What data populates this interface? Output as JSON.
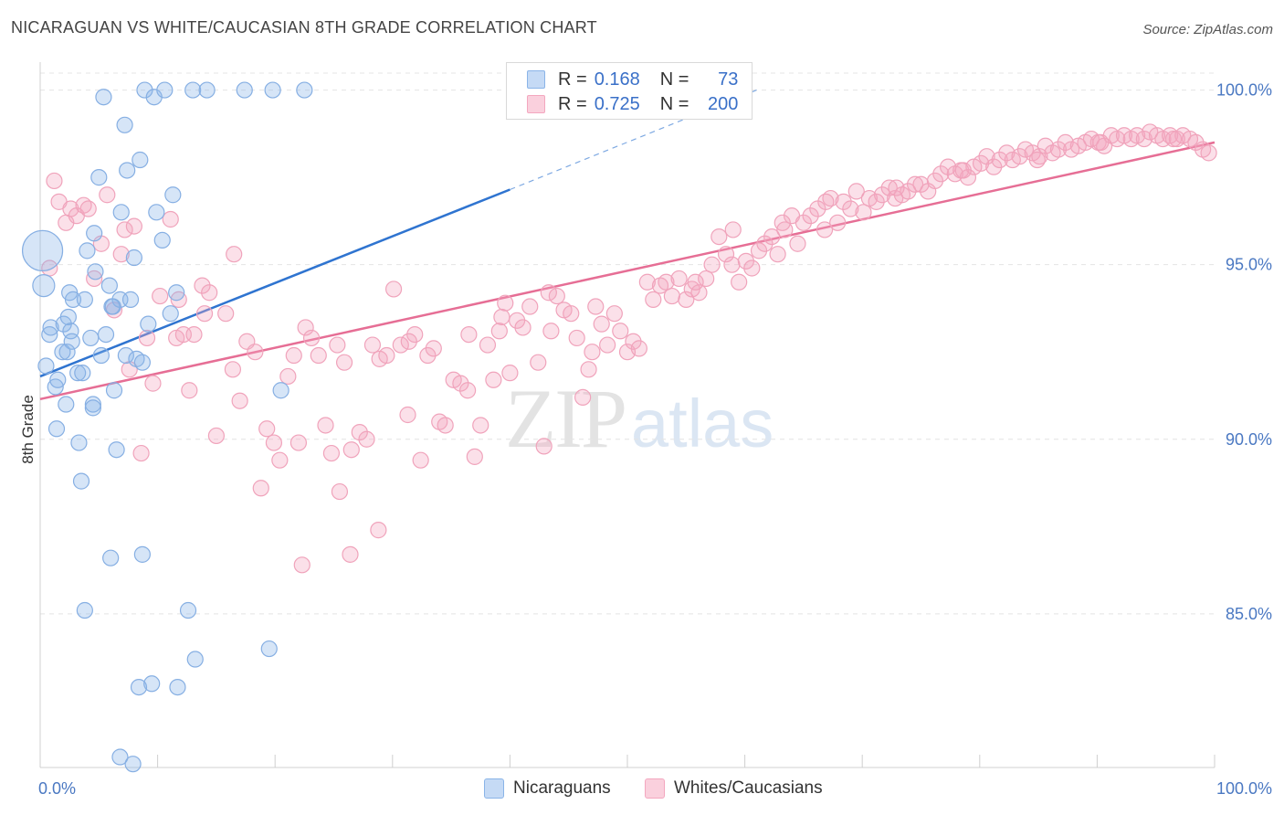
{
  "title": "NICARAGUAN VS WHITE/CAUCASIAN 8TH GRADE CORRELATION CHART",
  "source": "Source: ZipAtlas.com",
  "watermark": {
    "zip": "ZIP",
    "atlas": "atlas"
  },
  "colors": {
    "blue": "#8ab4e8",
    "blue_line": "#2f74d0",
    "pink": "#f3a7bf",
    "pink_line": "#e66e95",
    "tick": "#4a78c2"
  },
  "legend": {
    "rows": [
      {
        "r_label": "R =",
        "r_value": "0.168",
        "n_label": "N =",
        "n_value": "73"
      },
      {
        "r_label": "R =",
        "r_value": "0.725",
        "n_label": "N =",
        "n_value": "200"
      }
    ],
    "bottom": [
      "Nicaraguans",
      "Whites/Caucasians"
    ]
  },
  "chart_data": {
    "type": "scatter",
    "title": "NICARAGUAN VS WHITE/CAUCASIAN 8TH GRADE CORRELATION CHART",
    "xlabel": "",
    "ylabel": "8th Grade",
    "xlim": [
      0,
      100
    ],
    "ylim": [
      80.6,
      100.8
    ],
    "x_tick_labels": [
      "0.0%",
      "100.0%"
    ],
    "y_ticks": [
      85,
      90,
      95,
      100
    ],
    "y_tick_labels": [
      "85.0%",
      "90.0%",
      "95.0%",
      "100.0%"
    ],
    "grid": true,
    "legend_position": "top-center",
    "series": [
      {
        "name": "Nicaraguans",
        "r": 0.168,
        "n": 73,
        "trend": {
          "x0": 0,
          "y0": 91.8,
          "x1": 40,
          "y1": 97.15,
          "dash_to_x": 61,
          "dash_to_y": 100.0
        },
        "points": [
          [
            0.2,
            95.4
          ],
          [
            0.3,
            94.4
          ],
          [
            0.5,
            92.1
          ],
          [
            0.8,
            93.0
          ],
          [
            0.9,
            93.2
          ],
          [
            1.3,
            91.5
          ],
          [
            1.5,
            91.7
          ],
          [
            1.4,
            90.3
          ],
          [
            1.9,
            92.5
          ],
          [
            2.0,
            93.3
          ],
          [
            2.2,
            91.0
          ],
          [
            2.4,
            93.5
          ],
          [
            2.5,
            94.2
          ],
          [
            2.6,
            93.1
          ],
          [
            2.7,
            92.8
          ],
          [
            2.8,
            94.0
          ],
          [
            3.2,
            91.9
          ],
          [
            3.3,
            89.9
          ],
          [
            3.5,
            88.8
          ],
          [
            3.6,
            91.9
          ],
          [
            3.8,
            94.0
          ],
          [
            4.0,
            95.4
          ],
          [
            4.3,
            92.9
          ],
          [
            4.5,
            91.0
          ],
          [
            4.6,
            95.9
          ],
          [
            4.7,
            94.8
          ],
          [
            5.0,
            97.5
          ],
          [
            5.2,
            92.4
          ],
          [
            5.4,
            99.8
          ],
          [
            5.6,
            93.0
          ],
          [
            5.9,
            94.4
          ],
          [
            6.1,
            93.8
          ],
          [
            6.3,
            91.4
          ],
          [
            6.5,
            89.7
          ],
          [
            6.8,
            94.0
          ],
          [
            6.9,
            96.5
          ],
          [
            7.2,
            99.0
          ],
          [
            7.3,
            92.4
          ],
          [
            7.4,
            97.7
          ],
          [
            7.7,
            94.0
          ],
          [
            8.0,
            95.2
          ],
          [
            8.2,
            92.3
          ],
          [
            8.5,
            98.0
          ],
          [
            8.7,
            92.2
          ],
          [
            8.9,
            100.0
          ],
          [
            9.2,
            93.3
          ],
          [
            9.7,
            99.8
          ],
          [
            9.9,
            96.5
          ],
          [
            10.4,
            95.7
          ],
          [
            10.6,
            100.0
          ],
          [
            11.1,
            93.6
          ],
          [
            11.3,
            97.0
          ],
          [
            11.6,
            94.2
          ],
          [
            13.0,
            100.0
          ],
          [
            14.2,
            100.0
          ],
          [
            17.4,
            100.0
          ],
          [
            19.8,
            100.0
          ],
          [
            22.5,
            100.0
          ],
          [
            6.0,
            86.6
          ],
          [
            8.7,
            86.7
          ],
          [
            3.8,
            85.1
          ],
          [
            12.6,
            85.1
          ],
          [
            13.2,
            83.7
          ],
          [
            19.5,
            84.0
          ],
          [
            8.4,
            82.9
          ],
          [
            9.5,
            83.0
          ],
          [
            11.7,
            82.9
          ],
          [
            6.8,
            80.9
          ],
          [
            7.9,
            80.7
          ],
          [
            4.5,
            90.9
          ],
          [
            2.3,
            92.5
          ],
          [
            6.2,
            93.8
          ],
          [
            20.5,
            91.4
          ]
        ]
      },
      {
        "name": "Whites/Caucasians",
        "r": 0.725,
        "n": 200,
        "trend": {
          "x0": 0,
          "y0": 91.15,
          "x1": 100,
          "y1": 98.5
        },
        "points": [
          [
            0.8,
            94.9
          ],
          [
            1.2,
            97.4
          ],
          [
            1.6,
            96.8
          ],
          [
            2.2,
            96.2
          ],
          [
            2.6,
            96.6
          ],
          [
            3.1,
            96.4
          ],
          [
            3.7,
            96.7
          ],
          [
            4.1,
            96.6
          ],
          [
            4.6,
            94.6
          ],
          [
            5.2,
            95.6
          ],
          [
            5.7,
            97.0
          ],
          [
            6.3,
            93.7
          ],
          [
            6.9,
            95.3
          ],
          [
            7.2,
            96.0
          ],
          [
            7.6,
            92.0
          ],
          [
            8.0,
            96.1
          ],
          [
            8.6,
            89.6
          ],
          [
            9.1,
            92.9
          ],
          [
            9.6,
            91.6
          ],
          [
            10.2,
            94.1
          ],
          [
            11.1,
            96.3
          ],
          [
            11.6,
            92.9
          ],
          [
            12.2,
            93.0
          ],
          [
            12.7,
            91.4
          ],
          [
            13.1,
            93.0
          ],
          [
            13.8,
            94.4
          ],
          [
            14.4,
            94.2
          ],
          [
            15.0,
            90.1
          ],
          [
            15.8,
            93.6
          ],
          [
            16.4,
            92.0
          ],
          [
            17.0,
            91.1
          ],
          [
            17.6,
            92.8
          ],
          [
            18.3,
            92.5
          ],
          [
            18.8,
            88.6
          ],
          [
            19.3,
            90.3
          ],
          [
            19.9,
            89.9
          ],
          [
            20.4,
            89.4
          ],
          [
            21.1,
            91.8
          ],
          [
            22.0,
            89.9
          ],
          [
            22.6,
            93.2
          ],
          [
            23.1,
            92.9
          ],
          [
            23.7,
            92.4
          ],
          [
            24.3,
            90.4
          ],
          [
            24.8,
            89.6
          ],
          [
            25.3,
            92.7
          ],
          [
            25.9,
            92.2
          ],
          [
            26.5,
            89.7
          ],
          [
            27.2,
            90.2
          ],
          [
            27.8,
            90.0
          ],
          [
            28.3,
            92.7
          ],
          [
            28.9,
            92.3
          ],
          [
            29.5,
            92.4
          ],
          [
            30.1,
            94.3
          ],
          [
            30.7,
            92.7
          ],
          [
            31.3,
            90.7
          ],
          [
            31.9,
            93.0
          ],
          [
            32.4,
            89.4
          ],
          [
            33.0,
            92.4
          ],
          [
            33.5,
            92.6
          ],
          [
            34.0,
            90.5
          ],
          [
            34.5,
            90.4
          ],
          [
            35.2,
            91.7
          ],
          [
            35.8,
            91.6
          ],
          [
            36.4,
            91.4
          ],
          [
            37.0,
            89.5
          ],
          [
            37.5,
            90.4
          ],
          [
            38.1,
            92.7
          ],
          [
            38.6,
            91.7
          ],
          [
            39.1,
            93.1
          ],
          [
            39.6,
            93.9
          ],
          [
            40.0,
            91.9
          ],
          [
            40.6,
            93.4
          ],
          [
            41.1,
            93.2
          ],
          [
            41.7,
            93.8
          ],
          [
            42.4,
            92.2
          ],
          [
            42.9,
            89.8
          ],
          [
            43.5,
            93.1
          ],
          [
            44.0,
            94.1
          ],
          [
            44.6,
            93.7
          ],
          [
            45.2,
            93.6
          ],
          [
            45.7,
            92.9
          ],
          [
            46.2,
            91.2
          ],
          [
            46.7,
            92.0
          ],
          [
            47.3,
            93.8
          ],
          [
            47.8,
            93.3
          ],
          [
            48.3,
            92.7
          ],
          [
            48.9,
            93.6
          ],
          [
            49.4,
            93.1
          ],
          [
            50.0,
            92.5
          ],
          [
            50.5,
            92.8
          ],
          [
            51.0,
            92.6
          ],
          [
            51.7,
            94.5
          ],
          [
            52.2,
            94.0
          ],
          [
            52.8,
            94.4
          ],
          [
            53.3,
            94.5
          ],
          [
            53.8,
            94.1
          ],
          [
            54.4,
            94.6
          ],
          [
            55.0,
            94.0
          ],
          [
            55.5,
            94.3
          ],
          [
            56.1,
            94.2
          ],
          [
            56.7,
            94.6
          ],
          [
            57.2,
            95.0
          ],
          [
            57.8,
            95.8
          ],
          [
            58.4,
            95.3
          ],
          [
            58.9,
            95.0
          ],
          [
            59.5,
            94.5
          ],
          [
            60.1,
            95.1
          ],
          [
            60.6,
            94.9
          ],
          [
            61.2,
            95.4
          ],
          [
            61.7,
            95.6
          ],
          [
            62.3,
            95.8
          ],
          [
            62.8,
            95.3
          ],
          [
            63.4,
            96.0
          ],
          [
            64.0,
            96.4
          ],
          [
            64.5,
            95.6
          ],
          [
            65.0,
            96.2
          ],
          [
            65.6,
            96.4
          ],
          [
            66.2,
            96.6
          ],
          [
            66.8,
            96.0
          ],
          [
            67.3,
            96.9
          ],
          [
            67.9,
            96.2
          ],
          [
            68.4,
            96.8
          ],
          [
            69.0,
            96.6
          ],
          [
            69.5,
            97.1
          ],
          [
            70.1,
            96.5
          ],
          [
            70.6,
            96.9
          ],
          [
            71.2,
            96.8
          ],
          [
            71.7,
            97.0
          ],
          [
            72.3,
            97.2
          ],
          [
            72.8,
            96.9
          ],
          [
            73.4,
            97.0
          ],
          [
            73.9,
            97.1
          ],
          [
            74.5,
            97.3
          ],
          [
            75.0,
            97.3
          ],
          [
            75.6,
            97.1
          ],
          [
            76.2,
            97.4
          ],
          [
            76.7,
            97.6
          ],
          [
            77.3,
            97.8
          ],
          [
            77.9,
            97.6
          ],
          [
            78.4,
            97.7
          ],
          [
            79.0,
            97.5
          ],
          [
            79.5,
            97.8
          ],
          [
            80.1,
            97.9
          ],
          [
            80.6,
            98.1
          ],
          [
            81.2,
            97.8
          ],
          [
            81.7,
            98.0
          ],
          [
            82.3,
            98.2
          ],
          [
            82.8,
            98.0
          ],
          [
            83.4,
            98.1
          ],
          [
            83.9,
            98.3
          ],
          [
            84.5,
            98.2
          ],
          [
            85.1,
            98.1
          ],
          [
            85.6,
            98.4
          ],
          [
            86.2,
            98.2
          ],
          [
            86.7,
            98.3
          ],
          [
            87.3,
            98.5
          ],
          [
            87.8,
            98.3
          ],
          [
            88.4,
            98.4
          ],
          [
            89.0,
            98.5
          ],
          [
            89.5,
            98.6
          ],
          [
            90.1,
            98.5
          ],
          [
            90.6,
            98.4
          ],
          [
            91.2,
            98.7
          ],
          [
            91.7,
            98.6
          ],
          [
            92.3,
            98.7
          ],
          [
            92.9,
            98.6
          ],
          [
            93.4,
            98.7
          ],
          [
            94.0,
            98.6
          ],
          [
            94.5,
            98.8
          ],
          [
            95.1,
            98.7
          ],
          [
            95.6,
            98.6
          ],
          [
            96.2,
            98.7
          ],
          [
            96.8,
            98.6
          ],
          [
            97.3,
            98.7
          ],
          [
            97.9,
            98.6
          ],
          [
            98.4,
            98.5
          ],
          [
            99.0,
            98.3
          ],
          [
            99.5,
            98.2
          ],
          [
            11.8,
            94.0
          ],
          [
            14.0,
            93.6
          ],
          [
            16.5,
            95.3
          ],
          [
            21.6,
            92.4
          ],
          [
            25.5,
            88.5
          ],
          [
            28.8,
            87.4
          ],
          [
            26.4,
            86.7
          ],
          [
            22.3,
            86.4
          ],
          [
            39.3,
            93.5
          ],
          [
            47.0,
            92.5
          ],
          [
            55.8,
            94.5
          ],
          [
            59.0,
            96.0
          ],
          [
            63.2,
            96.2
          ],
          [
            66.9,
            96.8
          ],
          [
            72.9,
            97.2
          ],
          [
            78.6,
            97.7
          ],
          [
            84.9,
            98.0
          ],
          [
            90.3,
            98.5
          ],
          [
            96.5,
            98.6
          ],
          [
            43.3,
            94.2
          ],
          [
            36.5,
            93.0
          ],
          [
            31.4,
            92.8
          ]
        ]
      }
    ]
  }
}
